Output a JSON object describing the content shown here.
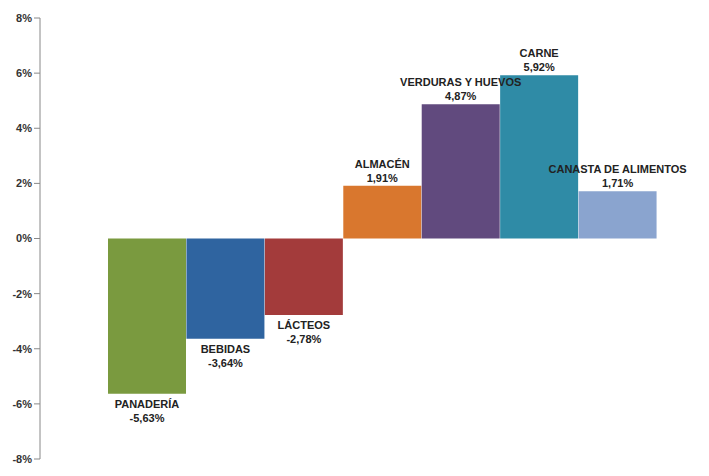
{
  "chart_data": {
    "type": "bar",
    "categories": [
      "PANADERÍA",
      "BEBIDAS",
      "LÁCTEOS",
      "ALMACÉN",
      "VERDURAS Y HUEVOS",
      "CARNE",
      "CANASTA DE ALIMENTOS"
    ],
    "values": [
      -5.63,
      -3.64,
      -2.78,
      1.91,
      4.87,
      5.92,
      1.71
    ],
    "value_labels": [
      "-5,63%",
      "-3,64%",
      "-2,78%",
      "1,91%",
      "4,87%",
      "5,92%",
      "1,71%"
    ],
    "colors": [
      "#7a9a3f",
      "#2f64a0",
      "#a33b3b",
      "#d9772e",
      "#614a7e",
      "#2f8ba6",
      "#8aa4cf"
    ],
    "ylim": [
      -8,
      8
    ],
    "yticks": [
      {
        "value": -8,
        "label": "-8%"
      },
      {
        "value": -6,
        "label": "-6%"
      },
      {
        "value": -4,
        "label": "-4%"
      },
      {
        "value": -2,
        "label": "-2%"
      },
      {
        "value": 0,
        "label": "0%"
      },
      {
        "value": 2,
        "label": "2%"
      },
      {
        "value": 4,
        "label": "4%"
      },
      {
        "value": 6,
        "label": "6%"
      },
      {
        "value": 8,
        "label": "8%"
      }
    ],
    "grid": false,
    "data_labels": true,
    "tick_labels": "y"
  }
}
